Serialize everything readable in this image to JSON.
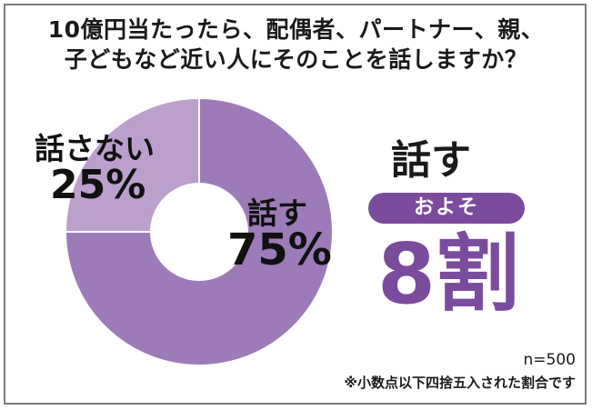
{
  "title_lines": [
    "10億円当たったら、配偶者、パートナー、親、",
    "子どもなど近い人にそのことを話しますか？"
  ],
  "chart_data": {
    "type": "pie",
    "title": "10億円当たったら、配偶者、パートナー、親、子どもなど近い人にそのことを話しますか？",
    "categories": [
      "話す",
      "話さない"
    ],
    "values": [
      75,
      25
    ],
    "value_labels": [
      "75%",
      "25%"
    ],
    "colors": [
      "#9d7bb8",
      "#bba0ce"
    ]
  },
  "summary": {
    "answer": "話す",
    "approx_label": "およそ",
    "value": "8割"
  },
  "footer": {
    "sample_size": "n=500",
    "note": "※小数点以下四捨五入された割合です"
  },
  "colors": {
    "accent": "#7b4b9d",
    "donut_main": "#9d7bb8",
    "donut_minor": "#bba0ce",
    "frame": "#7b7b7b"
  }
}
